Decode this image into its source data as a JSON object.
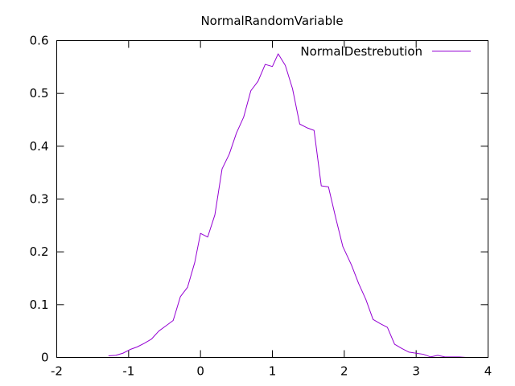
{
  "chart_data": {
    "type": "line",
    "title": "NormalRandomVariable",
    "xlabel": "",
    "ylabel": "",
    "xlim": [
      -2,
      4
    ],
    "ylim": [
      0,
      0.6
    ],
    "x_ticks": [
      -2,
      -1,
      0,
      1,
      2,
      3,
      4
    ],
    "y_ticks": [
      0,
      0.1,
      0.2,
      0.3,
      0.4,
      0.5,
      0.6
    ],
    "x_tick_labels": [
      "-2",
      "-1",
      "0",
      "1",
      "2",
      "3",
      "4"
    ],
    "y_tick_labels": [
      "0",
      "0.1",
      "0.2",
      "0.3",
      "0.4",
      "0.5",
      "0.6"
    ],
    "grid": false,
    "legend_position": "top-right",
    "series": [
      {
        "name": "NormalDestrebution",
        "color": "#9400d3",
        "x": [
          -1.28,
          -1.18,
          -1.08,
          -0.98,
          -0.88,
          -0.78,
          -0.68,
          -0.58,
          -0.48,
          -0.38,
          -0.28,
          -0.18,
          -0.08,
          0.0,
          0.1,
          0.2,
          0.3,
          0.4,
          0.5,
          0.6,
          0.7,
          0.8,
          0.9,
          1.0,
          1.08,
          1.18,
          1.28,
          1.38,
          1.48,
          1.58,
          1.68,
          1.78,
          1.88,
          1.98,
          2.1,
          2.2,
          2.3,
          2.4,
          2.5,
          2.6,
          2.7,
          2.8,
          2.9,
          3.0,
          3.1,
          3.2,
          3.3,
          3.4,
          3.5,
          3.6,
          3.7,
          3.8,
          3.9,
          4.0
        ],
        "y": [
          0.003,
          0.004,
          0.008,
          0.015,
          0.02,
          0.027,
          0.035,
          0.05,
          0.06,
          0.07,
          0.115,
          0.133,
          0.18,
          0.235,
          0.228,
          0.27,
          0.357,
          0.385,
          0.425,
          0.455,
          0.505,
          0.523,
          0.555,
          0.551,
          0.575,
          0.553,
          0.509,
          0.442,
          0.435,
          0.43,
          0.325,
          0.323,
          0.265,
          0.21,
          0.175,
          0.14,
          0.11,
          0.072,
          0.064,
          0.057,
          0.025,
          0.017,
          0.01,
          0.008,
          0.006,
          0.001,
          0.004,
          0.001,
          0.001,
          0.001,
          0.0,
          0.0,
          0.0,
          0.0
        ]
      }
    ]
  }
}
